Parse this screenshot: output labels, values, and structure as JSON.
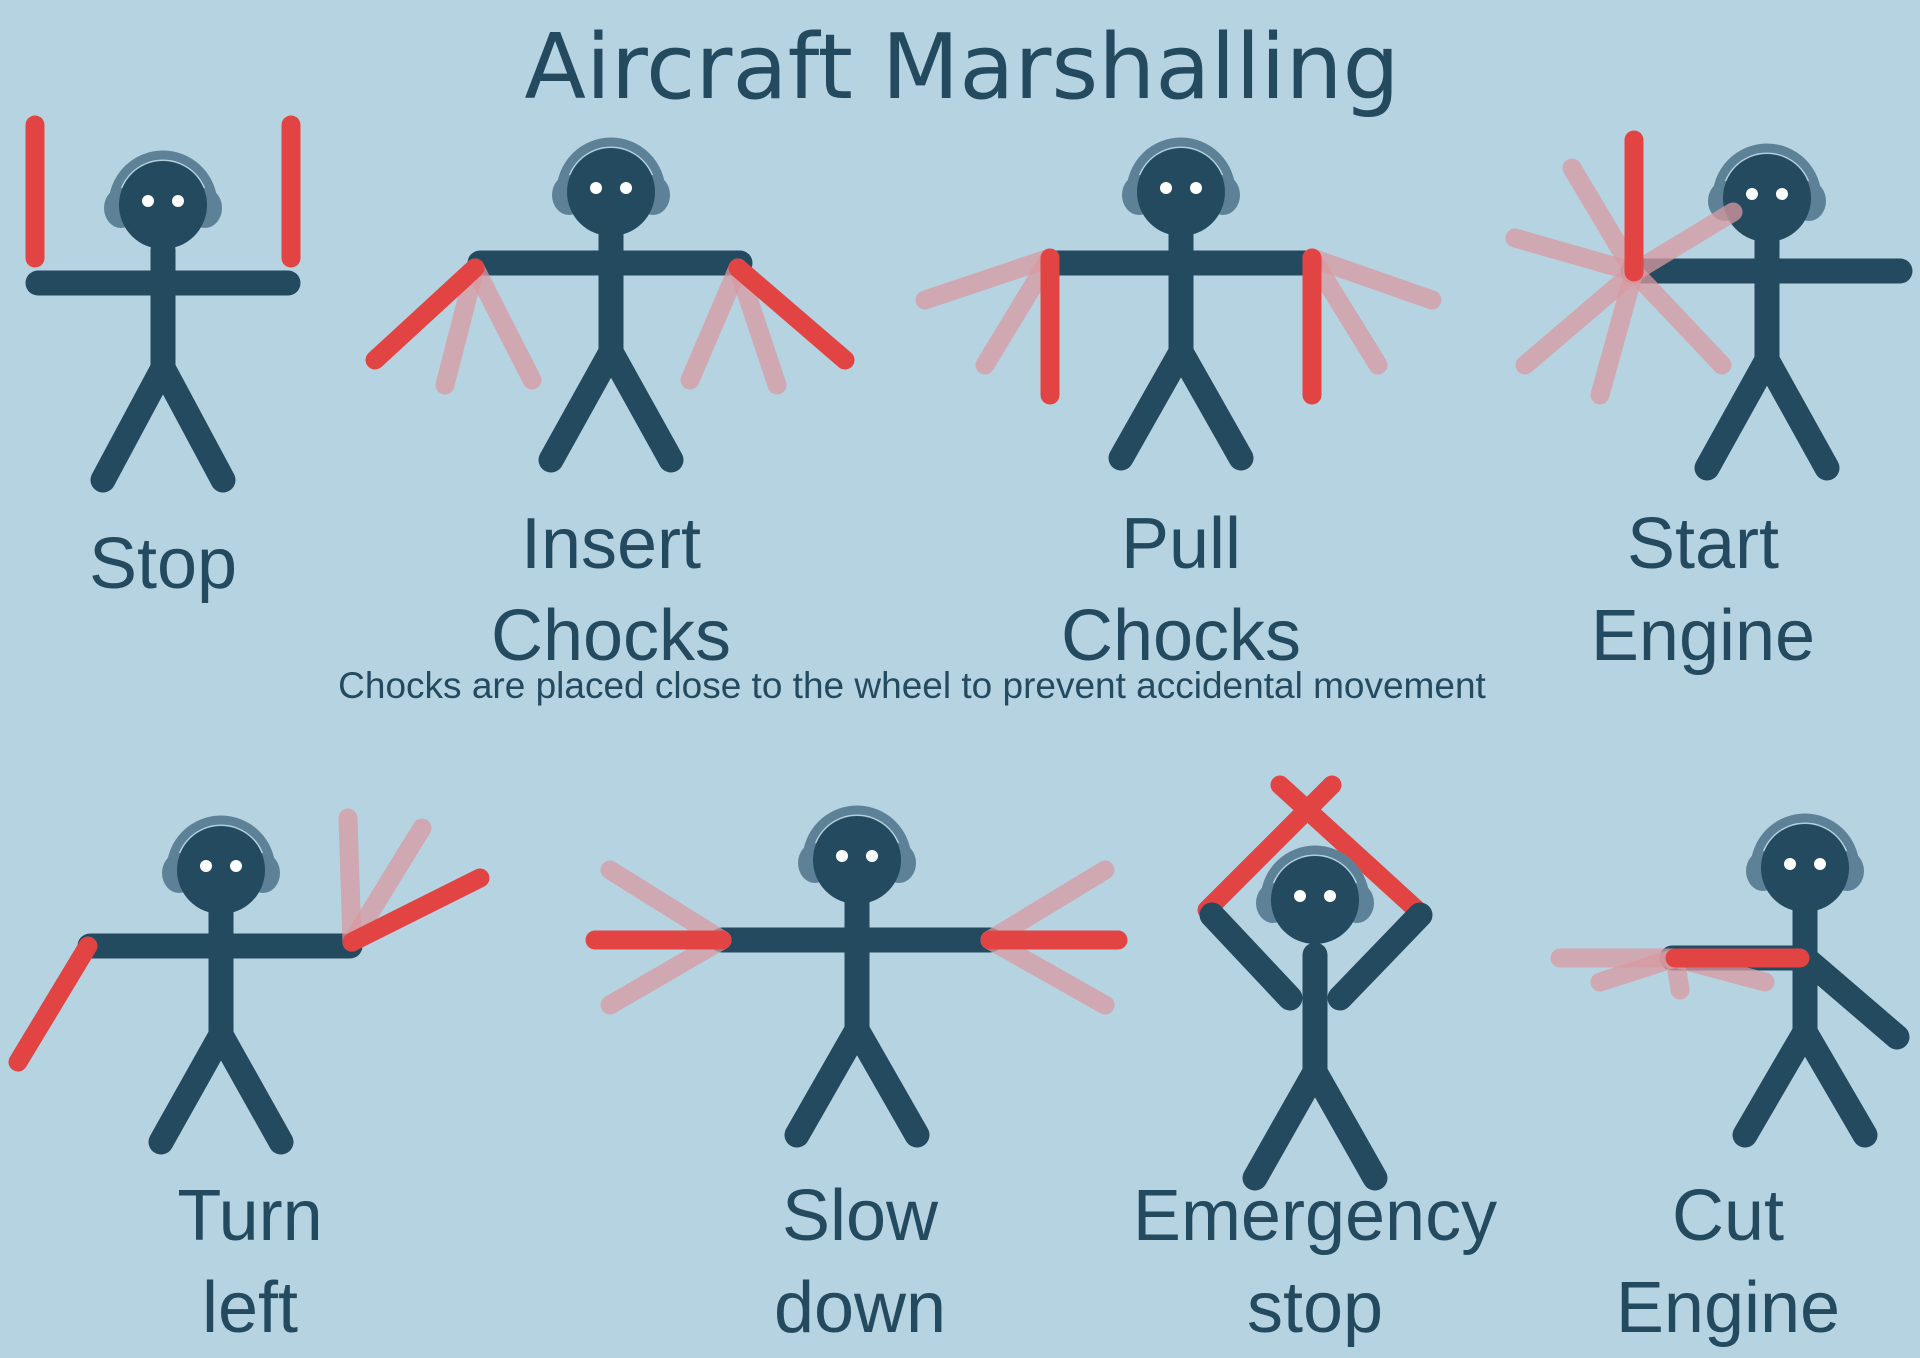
{
  "title": "Aircraft Marshalling",
  "note": "Chocks are placed close to the wheel to prevent accidental movement",
  "colors": {
    "background": "#b6d3e1",
    "figure": "#234a5f",
    "wand": "#e14443",
    "wand_faded": "#d99aa2",
    "headphones": "#5d8197",
    "headband_highlight": "#9ab8c8",
    "eyes": "#ffffff"
  },
  "signals": [
    {
      "id": "stop",
      "lines": [
        "Stop"
      ]
    },
    {
      "id": "insert-chocks",
      "lines": [
        "Insert",
        "Chocks"
      ]
    },
    {
      "id": "pull-chocks",
      "lines": [
        "Pull",
        "Chocks"
      ]
    },
    {
      "id": "start-engine",
      "lines": [
        "Start",
        "Engine"
      ]
    },
    {
      "id": "turn-left",
      "lines": [
        "Turn",
        "left"
      ]
    },
    {
      "id": "slow-down",
      "lines": [
        "Slow",
        "down"
      ]
    },
    {
      "id": "emergency-stop",
      "lines": [
        "Emergency",
        "stop"
      ]
    },
    {
      "id": "cut-engine",
      "lines": [
        "Cut",
        "Engine"
      ]
    }
  ]
}
